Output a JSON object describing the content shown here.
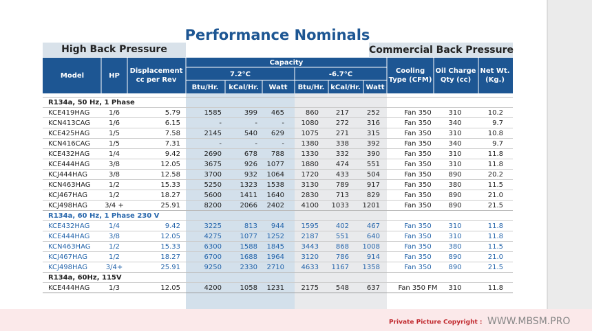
{
  "header": {
    "title": "Performance Nominals",
    "left_label": "High Back Pressure",
    "right_label": "Commercial Back Pressure"
  },
  "table": {
    "left_columns": [
      [
        "Model"
      ],
      [
        "HP"
      ],
      [
        "Displacement",
        "cc per Rev"
      ]
    ],
    "group": "Capacity",
    "subgroups": [
      "7.2°C",
      "-6.7°C"
    ],
    "subcolumns": [
      "Btu/Hr.",
      "kCal/Hr.",
      "Watt",
      "Btu/Hr.",
      "kCal/Hr.",
      "Watt"
    ],
    "right_columns": [
      [
        "Cooling",
        "Type (CFM)"
      ],
      [
        "Oil Charge",
        "Qty (cc)"
      ],
      [
        "Net Wt.",
        "(Kg.)"
      ]
    ],
    "sections": [
      {
        "title": "R134a, 50 Hz, 1 Phase",
        "rows": [
          [
            "KCE419HAG",
            "1/6",
            "5.79",
            "1585",
            "399",
            "465",
            "860",
            "217",
            "252",
            "Fan 350",
            "310",
            "10.2"
          ],
          [
            "KCN413CAG",
            "1/6",
            "6.15",
            "-",
            "-",
            "-",
            "1080",
            "272",
            "316",
            "Fan 350",
            "340",
            "9.7"
          ],
          [
            "KCE425HAG",
            "1/5",
            "7.58",
            "2145",
            "540",
            "629",
            "1075",
            "271",
            "315",
            "Fan 350",
            "310",
            "10.8"
          ],
          [
            "KCN416CAG",
            "1/5",
            "7.31",
            "-",
            "-",
            "-",
            "1380",
            "338",
            "392",
            "Fan 350",
            "340",
            "9.7"
          ],
          [
            "KCE432HAG",
            "1/4",
            "9.42",
            "2690",
            "678",
            "788",
            "1330",
            "332",
            "390",
            "Fan 350",
            "310",
            "11.8"
          ],
          [
            "KCE444HAG",
            "3/8",
            "12.05",
            "3675",
            "926",
            "1077",
            "1880",
            "474",
            "551",
            "Fan 350",
            "310",
            "11.8"
          ],
          [
            "KCJ444HAG",
            "3/8",
            "12.58",
            "3700",
            "932",
            "1064",
            "1720",
            "433",
            "504",
            "Fan 350",
            "890",
            "20.2"
          ],
          [
            "KCN463HAG",
            "1/2",
            "15.33",
            "5250",
            "1323",
            "1538",
            "3130",
            "789",
            "917",
            "Fan 350",
            "380",
            "11.5"
          ],
          [
            "KCJ467HAG",
            "1/2",
            "18.27",
            "5600",
            "1411",
            "1640",
            "2830",
            "713",
            "829",
            "Fan 350",
            "890",
            "21.0"
          ],
          [
            "KCJ498HAG",
            "3/4 +",
            "25.91",
            "8200",
            "2066",
            "2402",
            "4100",
            "1033",
            "1201",
            "Fan 350",
            "890",
            "21.5"
          ]
        ]
      },
      {
        "title": "R134a, 60 Hz, 1 Phase 230 V",
        "rows": [
          [
            "KCE432HAG",
            "1/4",
            "9.42",
            "3225",
            "813",
            "944",
            "1595",
            "402",
            "467",
            "Fan 350",
            "310",
            "11.8"
          ],
          [
            "KCE444HAG",
            "3/8",
            "12.05",
            "4275",
            "1077",
            "1252",
            "2187",
            "551",
            "640",
            "Fan 350",
            "310",
            "11.8"
          ],
          [
            "KCN463HAG",
            "1/2",
            "15.33",
            "6300",
            "1588",
            "1845",
            "3443",
            "868",
            "1008",
            "Fan 350",
            "380",
            "11.5"
          ],
          [
            "KCJ467HAG",
            "1/2",
            "18.27",
            "6700",
            "1688",
            "1964",
            "3120",
            "786",
            "914",
            "Fan 350",
            "890",
            "21.0"
          ],
          [
            "KCJ498HAG",
            "3/4+",
            "25.91",
            "9250",
            "2330",
            "2710",
            "4633",
            "1167",
            "1358",
            "Fan 350",
            "890",
            "21.5"
          ]
        ]
      },
      {
        "title": "R134a, 60Hz, 115V",
        "rows": [
          [
            "KCE444HAG",
            "1/3",
            "12.05",
            "4200",
            "1058",
            "1231",
            "2175",
            "548",
            "637",
            "Fan 350 FM",
            "310",
            "11.8"
          ]
        ]
      }
    ]
  },
  "footer": {
    "copyright": "Private Picture Copyright :",
    "site": "WWW.MBSM.PRO"
  }
}
